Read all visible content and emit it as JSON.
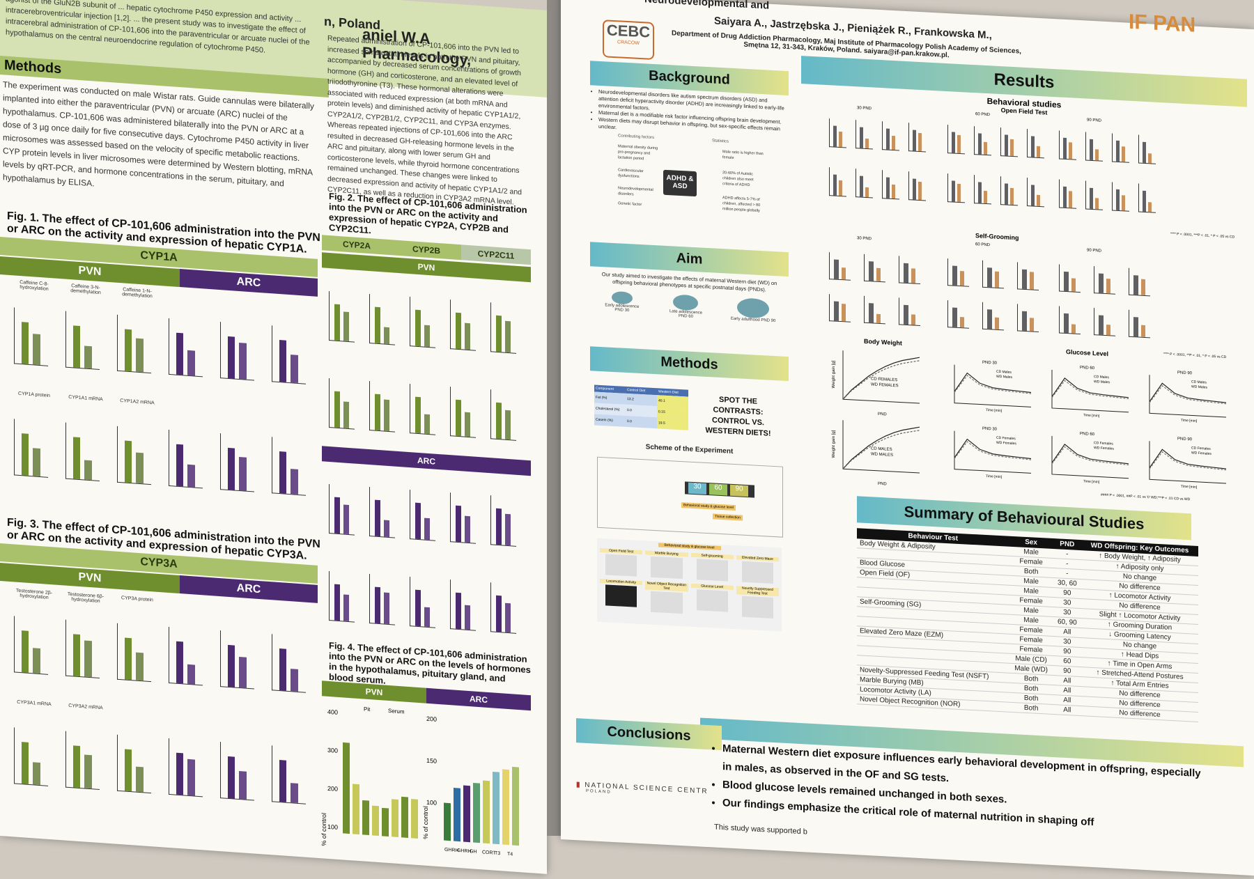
{
  "left_poster": {
    "header_fragment": "Pharmacology,",
    "author_fragment": "aniel W.A",
    "location_fragment": "n, Poland",
    "intro_text": "agonist of the GluN2B subunit of ... hepatic cytochrome P450 expression and activity ... intracerebroventricular injection [1,2]. ... the present study was to investigate the effect of intracerebral administration of CP-101,606 into the paraventricular or arcuate nuclei of the hypothalamus on the central neuroendocrine regulation of cytochrome P450.",
    "methods_title": "Methods",
    "methods_text": "The experiment was conducted on male Wistar rats. Guide cannulas were bilaterally implanted into either the paraventricular (PVN) or arcuate (ARC) nuclei of the hypothalamus. CP-101,606 was administered bilaterally into the PVN or ARC at a dose of 3 µg once daily for five consecutive days. Cytochrome P450 activity in liver microsomes was assessed based on the velocity of specific metabolic reactions. CYP protein levels in liver microsomes were determined by Western blotting, mRNA levels by qRT-PCR, and hormone concentrations in the serum, pituitary, and hypothalamus by ELISA.",
    "results_text": "Repeated administration of CP-101,606 into the PVN led to increased somatostatin levels in both the PVN and pituitary, accompanied by decreased serum concentrations of growth hormone (GH) and corticosterone, and an elevated level of triiodothyronine (T3). These hormonal alterations were associated with reduced expression (at both mRNA and protein levels) and diminished activity of hepatic CYP1A1/2, CYP2A1/2, CYP2B1/2, CYP2C11, and CYP3A enzymes. Whereas repeated injections of CP-101,606 into the ARC resulted in decreased GH-releasing hormone levels in the ARC and pituitary, along with lower serum GH and corticosterone levels, while thyroid hormone concentrations remained unchanged. These changes were linked to decreased expression and activity of hepatic CYP1A1/2 and CYP2C11, as well as a reduction in CYP3A2 mRNA level.",
    "fig1": "Fig. 1. The effect of CP-101,606 administration into the PVN or ARC on the activity and expression of hepatic CYP1A.",
    "fig2": "Fig. 2. The effect of CP-101,606 administration into the PVN or ARC on the activity and expression of hepatic CYP2A, CYP2B and CYP2C11.",
    "fig3": "Fig. 3. The effect of CP-101,606 administration into the PVN or ARC on the activity and expression of hepatic CYP3A.",
    "fig4": "Fig. 4. The effect of CP-101,606 administration into the PVN or ARC on the levels of hormones in the hypothalamus, pituitary gland, and blood serum.",
    "band_cyp1a": "CYP1A",
    "band_cyp3a": "CYP3A",
    "band_pvn": "PVN",
    "band_arc": "ARC",
    "band_cyp2a": "CYP2A",
    "band_cyp2b": "CYP2B",
    "band_cyp2c11": "CYP2C11",
    "fig1_labels": [
      "Caffeine C-8-hydroxylation",
      "Caffeine 3-N-demethylation",
      "Caffeine 1-N-demethylation",
      "CYP1A protein",
      "CYP1A1 mRNA",
      "CYP1A2 mRNA"
    ],
    "fig3_labels": [
      "Testosterone 2β-hydroxylation",
      "Testosterone 6β-hydroxylation",
      "CYP3A protein",
      "CYP3A1 mRNA",
      "CYP3A2 mRNA"
    ],
    "fig4_labels": {
      "pvn_axis": "% of control",
      "arc_axis": "% of control",
      "pit": "Pit",
      "serum": "Serum",
      "arc_short": "ARC"
    },
    "fig4_ticks_pvn": [
      "400",
      "300",
      "200",
      "100"
    ],
    "fig4_ticks_arc": [
      "200",
      "150",
      "100"
    ],
    "fig4_cats_arc": [
      "GHRH",
      "GHRH",
      "GH",
      "CORT",
      "T3",
      "T4"
    ]
  },
  "right_poster": {
    "title_fragment": "Neurodevelopmental and",
    "authors": "Saiyara A., Jastrzębska J., Pieniążek R., Frankowska M.,",
    "affiliation": "Department of Drug Addiction Pharmacology, Maj Institute of Pharmacology Polish Academy of Sciences, Smętna 12, 31-343, Kraków, Poland. saiyara@if-pan.krakow.pl.",
    "logo_left": "CEBC",
    "logo_left_sub": "CRACOW",
    "logo_right": "IF PAN",
    "background": {
      "title": "Background",
      "bullets": [
        "Neurodevelopmental disorders like autism spectrum disorders (ASD) and attention deficit hyperactivity disorder (ADHD) are increasingly linked to early-life environmental factors.",
        "Maternal diet is a modifiable risk factor influencing offspring brain development.",
        "Western diets may disrupt behavior in offspring, but sex-specific effects remain unclear."
      ],
      "diagram_center": "ADHD & ASD",
      "diagram_left_title": "Contributing factors",
      "diagram_right_title": "Statistics",
      "diagram_items_left": [
        "Maternal obesity during pre-pregnancy and lactation period",
        "Cardiovascular dysfunctions",
        "Neurodevelopmental disorders",
        "Genetic factor"
      ],
      "diagram_items_right": [
        "Male ratio is higher than female",
        "20-60% of Autistic children also meet criteria of ADHD",
        "ADHD affects 5-7% of children, affected > 80 million people globally"
      ]
    },
    "aim": {
      "title": "Aim",
      "text": "Our study aimed to investigate the effects of maternal Western diet (WD) on offspring behavioral phenotypes at specific postnatal days (PNDs).",
      "stages": [
        "Early adolescence PND 30",
        "Late adolescence PND 60",
        "Early adulthood PND 90"
      ]
    },
    "methods": {
      "title": "Methods",
      "spot": "SPOT THE CONTRASTS: CONTROL VS. WESTERN DIETS!",
      "scheme_title": "Scheme of the Experiment",
      "pnd_values": [
        "30",
        "60",
        "90"
      ],
      "scheme_labels": [
        "Behavioral study & glucose level",
        "Tissue collection"
      ],
      "diet_table": {
        "headers": [
          "Component",
          "Control Diet",
          "Western Diet"
        ],
        "rows": [
          [
            "Fat (%)",
            "13.2",
            "40.1"
          ],
          [
            "Cholesterol (%)",
            "0.0",
            "0.15"
          ],
          [
            "Casein (%)",
            "0.0",
            "19.5"
          ]
        ]
      },
      "tests_title": "Behavioral study & glucose level",
      "tests": [
        "Open Field Test",
        "Marble Burying",
        "Self-grooming",
        "Elevated Zero Maze",
        "Locomotion Activity",
        "Novel Object Recognition Test",
        "Glucose Level",
        "Novelty Suppressed Feeding Test"
      ]
    },
    "results": {
      "title": "Results",
      "behavioral": "Behavioral studies",
      "open_field": "Open Field Test",
      "self_grooming": "Self-Grooming",
      "body_weight": "Body Weight",
      "glucose": "Glucose Level",
      "pnd_labels": [
        "30 PND",
        "60 PND",
        "90 PND"
      ],
      "pnd_short": [
        "PND 30",
        "PND 60",
        "PND 90"
      ],
      "legend_female": [
        "CD FEMALES",
        "WD FEMALES"
      ],
      "legend_male": [
        "CD MALES",
        "WD MALES"
      ],
      "weight_axis": "Weight gain [g]",
      "weight_x": "PND",
      "weight_ticks": [
        "30",
        "40",
        "50",
        "60",
        "70",
        "80",
        "90"
      ],
      "glucose_legend_m": [
        "CD Males",
        "WD Males"
      ],
      "glucose_legend_f": [
        "CD Females",
        "WD Females"
      ],
      "time_axis": "Time [min]",
      "sig_note_1": "**** P < .0001, ***P < .01, * P < .05 vs CD",
      "sig_note_2": "**** P < .0001, **P < .01, * P < .05 vs CD",
      "sig_note_3": "**** P < .0001, ***P < .01, * P < .05 vs CD",
      "sig_note_4": "#### P < .0001, ##P < .01 vs '0' WD;***P < .01 CD vs WD",
      "group_labels": [
        "CD",
        "WD"
      ]
    },
    "summary": {
      "title": "Summary of Behavioural Studies",
      "headers": [
        "Behaviour Test",
        "Sex",
        "PND",
        "WD Offspring: Key Outcomes"
      ],
      "rows": [
        [
          "Body Weight & Adiposity",
          "Male",
          "-",
          "↑ Body Weight, ↑ Adiposity"
        ],
        [
          "",
          "Female",
          "-",
          "↑ Adiposity only"
        ],
        [
          "Blood Glucose",
          "Both",
          "-",
          "No change"
        ],
        [
          "Open Field (OF)",
          "Male",
          "30, 60",
          "No difference"
        ],
        [
          "",
          "Male",
          "90",
          "↑ Locomotor Activity"
        ],
        [
          "",
          "Female",
          "30",
          "No difference"
        ],
        [
          "Self-Grooming (SG)",
          "Male",
          "30",
          "Slight ↑ Locomotor Activity"
        ],
        [
          "",
          "Male",
          "60, 90",
          "↑ Grooming Duration"
        ],
        [
          "",
          "Female",
          "All",
          "↓ Grooming Latency"
        ],
        [
          "Elevated Zero Maze (EZM)",
          "Female",
          "30",
          "No change"
        ],
        [
          "",
          "Female",
          "90",
          "↑ Head Dips"
        ],
        [
          "",
          "Male (CD)",
          "60",
          "↑ Time in Open Arms"
        ],
        [
          "",
          "Male (WD)",
          "90",
          "↑ Stretched-Attend Postures"
        ],
        [
          "Novelty-Suppressed Feeding Test (NSFT)",
          "Both",
          "All",
          "↑ Total Arm Entries"
        ],
        [
          "Marble Burying (MB)",
          "Both",
          "All",
          "No difference"
        ],
        [
          "Locomotor Activity (LA)",
          "Both",
          "All",
          "No difference"
        ],
        [
          "Novel Object Recognition (NOR)",
          "Both",
          "All",
          "No difference"
        ]
      ]
    },
    "conclusions": {
      "title": "Conclusions",
      "bullets": [
        "Maternal Western diet exposure influences early behavioral development in offspring, especially in males, as observed in the OF and SG tests.",
        "Blood glucose levels remained unchanged in both sexes.",
        "Our findings emphasize the critical role of maternal nutrition in shaping off"
      ],
      "funding": "This study was supported b",
      "nsc": "NATIONAL SCIENCE CENTR",
      "nsc_sub": "POLAND"
    }
  },
  "colors": {
    "green": "#6f8f2f",
    "light_green": "#a9c16b",
    "purple": "#4b2a72",
    "tan_bar": "#c9925c",
    "grey_bar": "#5f6064",
    "teal": "#64b9c9",
    "yellow": "#e3e28a"
  }
}
